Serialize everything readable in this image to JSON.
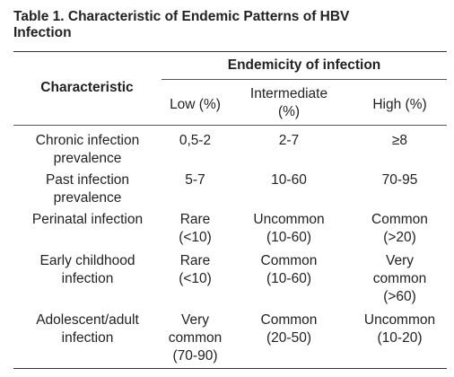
{
  "table": {
    "caption_line1": "Table 1. Characteristic of Endemic Patterns of HBV",
    "caption_line2": "Infection",
    "header": {
      "row_header": "Characteristic",
      "group_header": "Endemicity of infection",
      "columns": [
        "Low (%)",
        "Intermediate\n(%)",
        "High (%)"
      ]
    },
    "rows": [
      {
        "characteristic": "Chronic infection\nprevalence",
        "low": "0,5-2",
        "intermediate": "2-7",
        "high": "≥8"
      },
      {
        "characteristic": "Past infection\nprevalence",
        "low": "5-7",
        "intermediate": "10-60",
        "high": "70-95"
      },
      {
        "characteristic": "Perinatal infection",
        "low": "Rare\n(<10)",
        "intermediate": "Uncommon\n(10-60)",
        "high": "Common\n(>20)"
      },
      {
        "characteristic": "Early childhood\ninfection",
        "low": "Rare\n(<10)",
        "intermediate": "Common\n(10-60)",
        "high": "Very\ncommon\n(>60)"
      },
      {
        "characteristic": "Adolescent/adult\ninfection",
        "low": "Very\ncommon\n(70-90)",
        "intermediate": "Common\n(20-50)",
        "high": "Uncommon\n(10-20)"
      }
    ]
  }
}
